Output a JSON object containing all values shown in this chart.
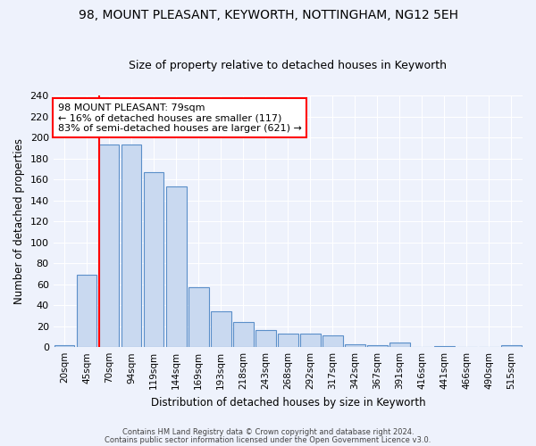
{
  "title1": "98, MOUNT PLEASANT, KEYWORTH, NOTTINGHAM, NG12 5EH",
  "title2": "Size of property relative to detached houses in Keyworth",
  "xlabel": "Distribution of detached houses by size in Keyworth",
  "ylabel": "Number of detached properties",
  "bar_labels": [
    "20sqm",
    "45sqm",
    "70sqm",
    "94sqm",
    "119sqm",
    "144sqm",
    "169sqm",
    "193sqm",
    "218sqm",
    "243sqm",
    "268sqm",
    "292sqm",
    "317sqm",
    "342sqm",
    "367sqm",
    "391sqm",
    "416sqm",
    "441sqm",
    "466sqm",
    "490sqm",
    "515sqm"
  ],
  "bar_values": [
    2,
    69,
    193,
    193,
    167,
    153,
    57,
    34,
    24,
    16,
    13,
    13,
    11,
    3,
    2,
    4,
    0,
    1,
    0,
    0,
    2
  ],
  "bar_color": "#c9d9f0",
  "bar_edge_color": "#5b8fc9",
  "red_line_index": 2,
  "annotation_text": "98 MOUNT PLEASANT: 79sqm\n← 16% of detached houses are smaller (117)\n83% of semi-detached houses are larger (621) →",
  "annotation_box_color": "white",
  "annotation_box_edge_color": "red",
  "footer1": "Contains HM Land Registry data © Crown copyright and database right 2024.",
  "footer2": "Contains public sector information licensed under the Open Government Licence v3.0.",
  "background_color": "#eef2fc",
  "grid_color": "white",
  "ylim": [
    0,
    240
  ],
  "yticks": [
    0,
    20,
    40,
    60,
    80,
    100,
    120,
    140,
    160,
    180,
    200,
    220,
    240
  ]
}
